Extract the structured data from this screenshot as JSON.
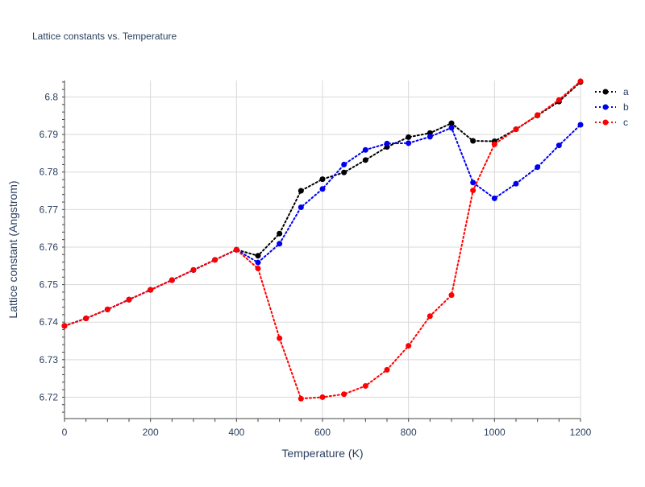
{
  "chart_data": {
    "type": "line",
    "title": "Lattice constants vs. Temperature",
    "xlabel": "Temperature (K)",
    "ylabel": "Lattice constant (Angstrom)",
    "xlim": [
      0,
      1200
    ],
    "ylim": [
      6.7143,
      6.8044
    ],
    "xticks": [
      0,
      200,
      400,
      600,
      800,
      1000,
      1200
    ],
    "yticks": [
      6.72,
      6.73,
      6.74,
      6.75,
      6.76,
      6.77,
      6.78,
      6.79,
      6.8
    ],
    "grid": true,
    "legend_position": "top-right",
    "line_style": "dotted",
    "x": [
      0,
      50,
      100,
      150,
      200,
      250,
      300,
      350,
      400,
      450,
      500,
      550,
      600,
      650,
      700,
      750,
      800,
      850,
      900,
      950,
      1000,
      1050,
      1100,
      1150,
      1200
    ],
    "series": [
      {
        "name": "a",
        "color": "#000000",
        "values": [
          6.739,
          6.741,
          6.7434,
          6.746,
          6.7486,
          6.7512,
          6.7539,
          6.7566,
          6.7593,
          6.7577,
          6.7636,
          6.775,
          6.7781,
          6.7799,
          6.7832,
          6.7867,
          6.7893,
          6.7904,
          6.793,
          6.7883,
          6.7882,
          6.7914,
          6.7951,
          6.7988,
          6.804
        ]
      },
      {
        "name": "b",
        "color": "#0000ee",
        "values": [
          6.739,
          6.741,
          6.7434,
          6.746,
          6.7486,
          6.7512,
          6.7539,
          6.7566,
          6.7593,
          6.7559,
          6.7609,
          6.7706,
          6.7755,
          6.782,
          6.7859,
          6.7876,
          6.7877,
          6.7894,
          6.7918,
          6.7772,
          6.773,
          6.7769,
          6.7813,
          6.7871,
          6.7926
        ]
      },
      {
        "name": "c",
        "color": "#ff0000",
        "values": [
          6.739,
          6.741,
          6.7434,
          6.746,
          6.7486,
          6.7512,
          6.7539,
          6.7566,
          6.7593,
          6.7543,
          6.7357,
          6.7196,
          6.72,
          6.7208,
          6.723,
          6.7273,
          6.7337,
          6.7416,
          6.7472,
          6.7751,
          6.7874,
          6.7914,
          6.7952,
          6.7992,
          6.8042
        ]
      }
    ]
  }
}
